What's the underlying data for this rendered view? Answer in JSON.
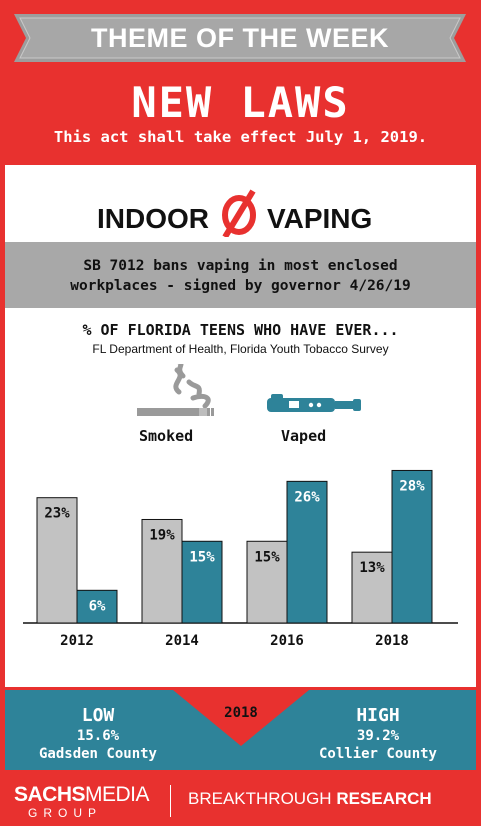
{
  "banner": {
    "title": "THEME OF THE WEEK"
  },
  "headline": "NEW LAWS",
  "subhead": "This act shall take effect July 1, 2019.",
  "ban": {
    "word1": "INDOOR",
    "word2": "VAPING"
  },
  "summary": {
    "line1": "SB 7012 bans vaping in most enclosed",
    "line2": "workplaces - signed by governor 4/26/19"
  },
  "stat": {
    "title": "% OF FLORIDA TEENS WHO HAVE EVER...",
    "source": "FL Department of Health, Florida Youth Tobacco Survey"
  },
  "legend": {
    "smoked": "Smoked",
    "vaped": "Vaped",
    "smoked_icon": "cigarette-icon",
    "vaped_icon": "vape-pen-icon"
  },
  "colors": {
    "red": "#e8312f",
    "teal": "#2e8399",
    "gray": "#c2c2c2",
    "white": "#ffffff"
  },
  "chart_data": {
    "type": "bar",
    "categories": [
      "2012",
      "2014",
      "2016",
      "2018"
    ],
    "series": [
      {
        "name": "Smoked",
        "values": [
          23,
          19,
          15,
          13
        ],
        "labels": [
          "23%",
          "19%",
          "15%",
          "13%"
        ]
      },
      {
        "name": "Vaped",
        "values": [
          6,
          15,
          26,
          28
        ],
        "labels": [
          "6%",
          "15%",
          "26%",
          "28%"
        ]
      }
    ],
    "ylim": [
      0,
      30
    ],
    "grid": false
  },
  "footer": {
    "year": "2018",
    "low": {
      "label": "LOW",
      "value": "15.6%",
      "county": "Gadsden County"
    },
    "high": {
      "label": "HIGH",
      "value": "39.2%",
      "county": "Collier County"
    }
  },
  "brand": {
    "sachs": "SACHS",
    "media": "MEDIA",
    "group": "GROUP",
    "partner_a": "BREAKTHROUGH",
    "partner_b": "RESEARCH"
  }
}
